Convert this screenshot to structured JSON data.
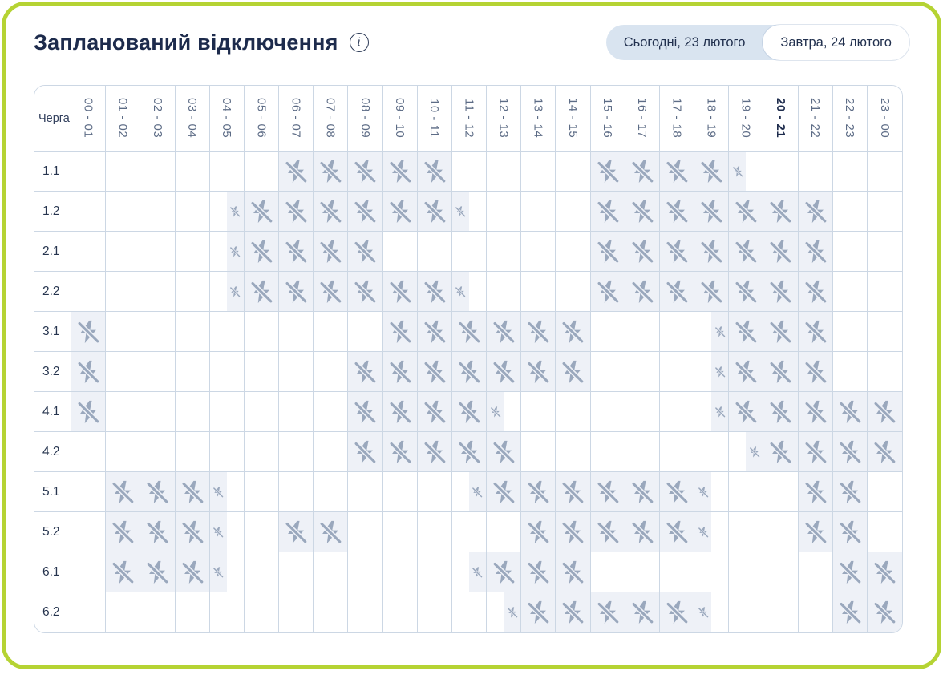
{
  "header": {
    "title": "Запланований відключення",
    "info_icon": "i"
  },
  "toggle": {
    "today_label": "Сьогодні, 23 лютого",
    "tomorrow_label": "Завтра, 24 лютого",
    "active": "tomorrow"
  },
  "table": {
    "corner_label": "Черга",
    "hours": [
      "00 - 01",
      "01 - 02",
      "02 - 03",
      "03 - 04",
      "04 - 05",
      "05 - 06",
      "06 - 07",
      "07 - 08",
      "08 - 09",
      "09 - 10",
      "10 - 11",
      "11 - 12",
      "12 - 13",
      "13 - 14",
      "14 - 15",
      "15 - 16",
      "16 - 17",
      "17 - 18",
      "18 - 19",
      "19 - 20",
      "20 - 21",
      "21 - 22",
      "22 - 23",
      "23 - 00"
    ],
    "current_hour_index": 20,
    "legend": {
      "F": "outage-full-hour",
      "h1": "outage-first-half-hour",
      "h2": "outage-second-half-hour"
    },
    "rows": [
      {
        "queue": "1.1",
        "cells": [
          "",
          "",
          "",
          "",
          "",
          "",
          "F",
          "F",
          "F",
          "F",
          "F",
          "",
          "",
          "",
          "",
          "F",
          "F",
          "F",
          "F",
          "h1",
          "",
          "",
          "",
          ""
        ]
      },
      {
        "queue": "1.2",
        "cells": [
          "",
          "",
          "",
          "",
          "h2",
          "F",
          "F",
          "F",
          "F",
          "F",
          "F",
          "h1",
          "",
          "",
          "",
          "F",
          "F",
          "F",
          "F",
          "F",
          "F",
          "F",
          "",
          ""
        ]
      },
      {
        "queue": "2.1",
        "cells": [
          "",
          "",
          "",
          "",
          "h2",
          "F",
          "F",
          "F",
          "F",
          "",
          "",
          "",
          "",
          "",
          "",
          "F",
          "F",
          "F",
          "F",
          "F",
          "F",
          "F",
          "",
          ""
        ]
      },
      {
        "queue": "2.2",
        "cells": [
          "",
          "",
          "",
          "",
          "h2",
          "F",
          "F",
          "F",
          "F",
          "F",
          "F",
          "h1",
          "",
          "",
          "",
          "F",
          "F",
          "F",
          "F",
          "F",
          "F",
          "F",
          "",
          ""
        ]
      },
      {
        "queue": "3.1",
        "cells": [
          "F",
          "",
          "",
          "",
          "",
          "",
          "",
          "",
          "",
          "F",
          "F",
          "F",
          "F",
          "F",
          "F",
          "",
          "",
          "",
          "h2",
          "F",
          "F",
          "F",
          "",
          ""
        ]
      },
      {
        "queue": "3.2",
        "cells": [
          "F",
          "",
          "",
          "",
          "",
          "",
          "",
          "",
          "F",
          "F",
          "F",
          "F",
          "F",
          "F",
          "F",
          "",
          "",
          "",
          "h2",
          "F",
          "F",
          "F",
          "",
          ""
        ]
      },
      {
        "queue": "4.1",
        "cells": [
          "F",
          "",
          "",
          "",
          "",
          "",
          "",
          "",
          "F",
          "F",
          "F",
          "F",
          "h1",
          "",
          "",
          "",
          "",
          "",
          "h2",
          "F",
          "F",
          "F",
          "F",
          "F"
        ]
      },
      {
        "queue": "4.2",
        "cells": [
          "",
          "",
          "",
          "",
          "",
          "",
          "",
          "",
          "F",
          "F",
          "F",
          "F",
          "F",
          "",
          "",
          "",
          "",
          "",
          "",
          "h2",
          "F",
          "F",
          "F",
          "F"
        ]
      },
      {
        "queue": "5.1",
        "cells": [
          "",
          "F",
          "F",
          "F",
          "h1",
          "",
          "",
          "",
          "",
          "",
          "",
          "h2",
          "F",
          "F",
          "F",
          "F",
          "F",
          "F",
          "h1",
          "",
          "",
          "F",
          "F",
          ""
        ]
      },
      {
        "queue": "5.2",
        "cells": [
          "",
          "F",
          "F",
          "F",
          "h1",
          "",
          "F",
          "F",
          "",
          "",
          "",
          "",
          "",
          "F",
          "F",
          "F",
          "F",
          "F",
          "h1",
          "",
          "",
          "F",
          "F",
          ""
        ]
      },
      {
        "queue": "6.1",
        "cells": [
          "",
          "F",
          "F",
          "F",
          "h1",
          "",
          "",
          "",
          "",
          "",
          "",
          "h2",
          "F",
          "F",
          "F",
          "",
          "",
          "",
          "",
          "",
          "",
          "",
          "F",
          "F"
        ]
      },
      {
        "queue": "6.2",
        "cells": [
          "",
          "",
          "",
          "",
          "",
          "",
          "",
          "",
          "",
          "",
          "",
          "",
          "h2",
          "F",
          "F",
          "F",
          "F",
          "F",
          "h1",
          "",
          "",
          "",
          "F",
          "F"
        ]
      }
    ]
  },
  "colors": {
    "frame_green": "#b5d333",
    "title_text": "#1d2b4c",
    "grid_line": "#ccd7e4",
    "outage_bg": "#eef1f7",
    "icon": "#9aa8bd",
    "hour_text": "#5d6c86",
    "toggle_bg": "#d9e4f0",
    "toggle_active_bg": "#ffffff"
  }
}
